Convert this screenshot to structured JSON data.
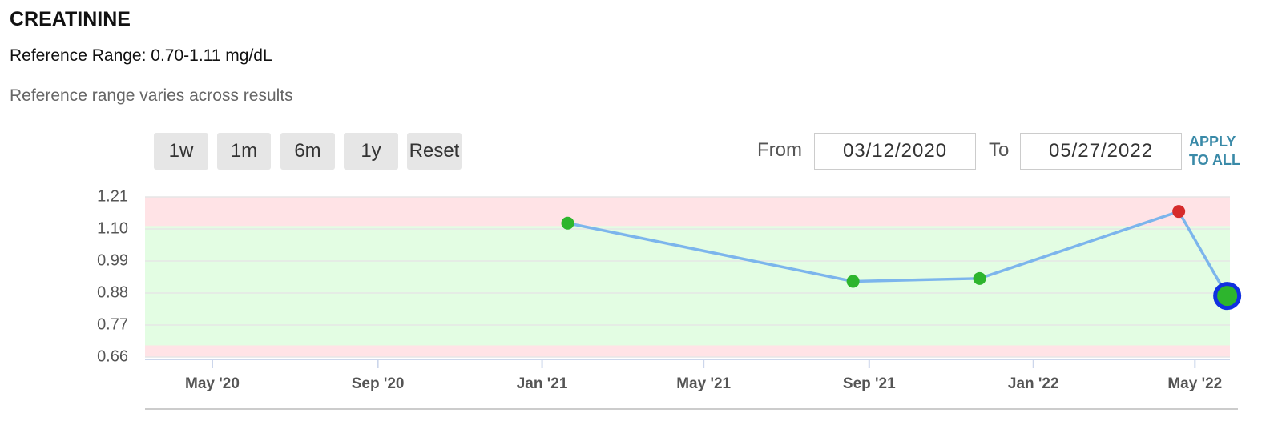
{
  "header": {
    "title": "CREATININE",
    "reference_range": "Reference Range: 0.70-1.11 mg/dL",
    "note": "Reference range varies across results"
  },
  "controls": {
    "buttons": [
      "1w",
      "1m",
      "6m",
      "1y",
      "Reset"
    ],
    "from_label": "From",
    "from_date": "03/12/2020",
    "to_label": "To",
    "to_date": "05/27/2022",
    "apply": [
      "APPLY",
      "TO ALL"
    ]
  },
  "chart_data": {
    "type": "line",
    "x": [
      "2021-01-20",
      "2021-08-20",
      "2021-11-22",
      "2022-04-19",
      "2022-05-25"
    ],
    "series": [
      {
        "color": "#7cb5ec",
        "values": [
          1.12,
          0.92,
          0.93,
          1.16,
          0.87
        ],
        "point_colors": [
          "#2db52d",
          "#2db52d",
          "#2db52d",
          "#d62b2b",
          "#2db52d"
        ]
      }
    ],
    "selected_point": 4,
    "reference_band": [
      0.7,
      1.11
    ],
    "band_color": "#e3fde3",
    "out_of_range_color": "#ffe3e6",
    "xlim": [
      "2020-03-12",
      "2022-05-27"
    ],
    "xticks": [
      {
        "value": "2020-05-01",
        "label": "May '20"
      },
      {
        "value": "2020-09-01",
        "label": "Sep '20"
      },
      {
        "value": "2021-01-01",
        "label": "Jan '21"
      },
      {
        "value": "2021-05-01",
        "label": "May '21"
      },
      {
        "value": "2021-09-01",
        "label": "Sep '21"
      },
      {
        "value": "2022-01-01",
        "label": "Jan '22"
      },
      {
        "value": "2022-05-01",
        "label": "May '22"
      }
    ],
    "ylim": [
      0.66,
      1.21
    ],
    "yticks": [
      0.66,
      0.77,
      0.88,
      0.99,
      {
        "value": 1.1,
        "label": "1.10"
      },
      1.21
    ],
    "grid": true
  }
}
